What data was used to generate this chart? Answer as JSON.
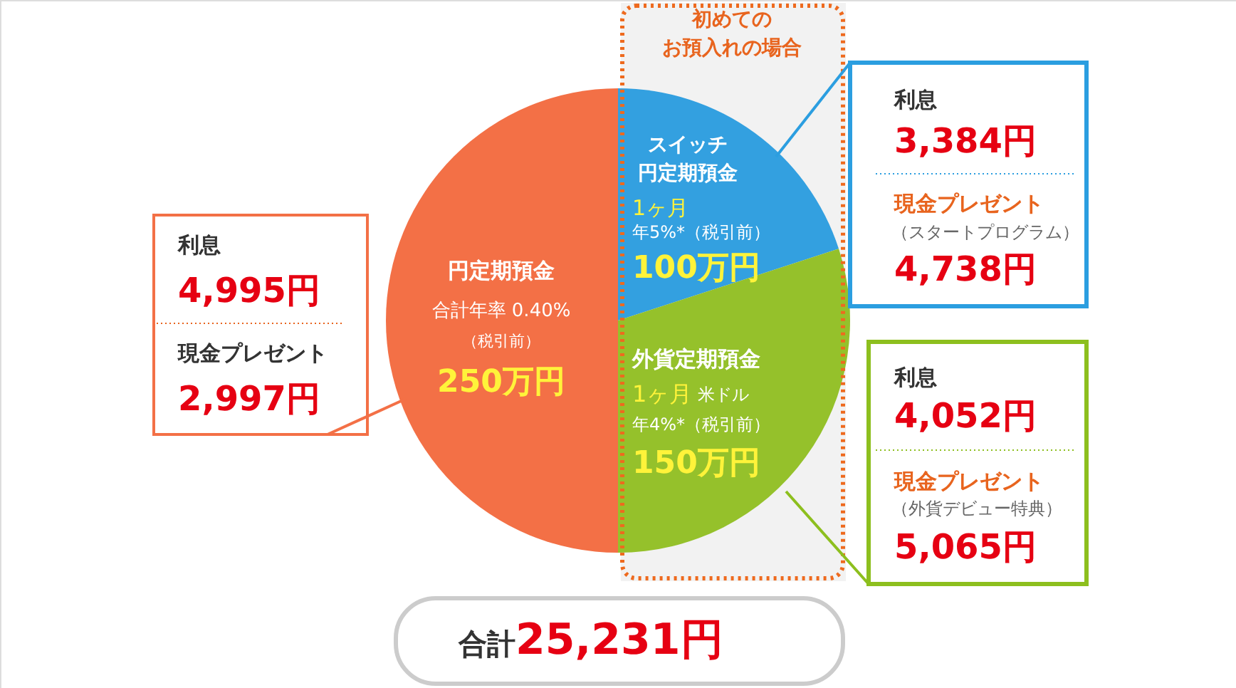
{
  "chart_data": {
    "type": "pie",
    "categories": [
      "円定期預金",
      "スイッチ円定期預金",
      "外貨定期預金"
    ],
    "values": [
      250,
      100,
      150
    ],
    "colors": [
      "#f37046",
      "#33a0e0",
      "#95c12b"
    ],
    "value_labels": [
      "250万円",
      "100万円",
      "150万円"
    ],
    "annotations": [
      "初めてのお預入れの場合",
      "合計年率 0.40%",
      "（税引前）",
      "1ヶ月",
      "年5%*（税引前）",
      "1ヶ月",
      "米ドル",
      "年4%*（税引前）",
      "利息",
      "4,995円",
      "現金プレゼント",
      "2,997円",
      "利息",
      "3,384円",
      "現金プレゼント",
      "（スタートプログラム）",
      "4,738円",
      "利息",
      "4,052円",
      "現金プレゼント",
      "（外貨デビュー特典）",
      "5,065円",
      "合計",
      "25,231円"
    ]
  }
}
